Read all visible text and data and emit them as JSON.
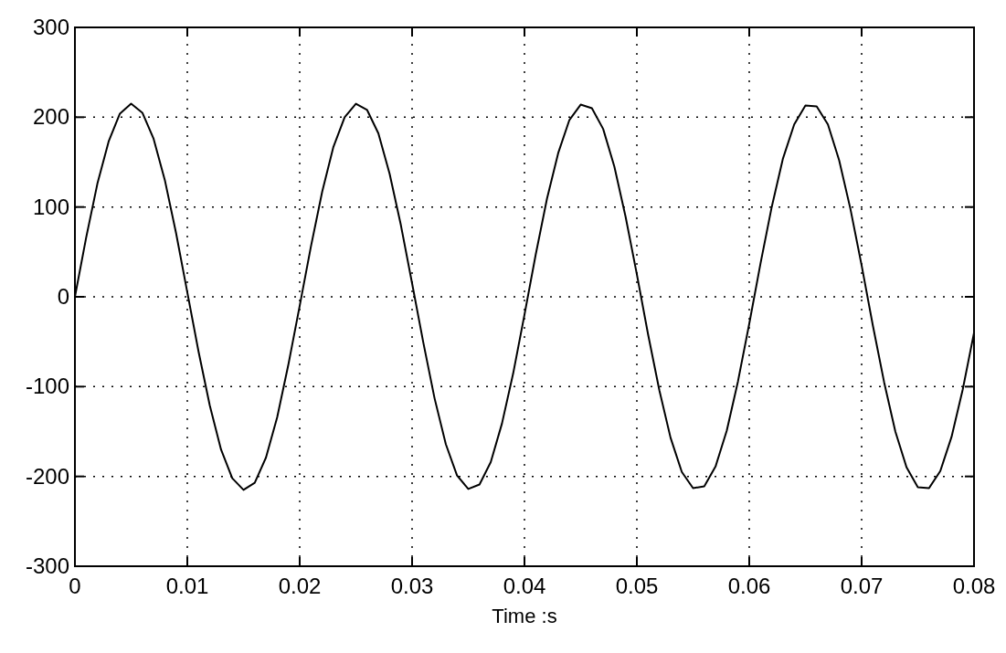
{
  "chart_data": {
    "type": "line",
    "xlabel": "Time :s",
    "x": [
      0,
      0.001,
      0.002,
      0.003,
      0.004,
      0.005,
      0.006,
      0.007,
      0.008,
      0.009,
      0.01,
      0.011,
      0.012,
      0.013,
      0.014,
      0.015,
      0.016,
      0.017,
      0.018,
      0.019,
      0.02,
      0.021,
      0.022,
      0.023,
      0.024,
      0.025,
      0.026,
      0.027,
      0.028,
      0.029,
      0.03,
      0.031,
      0.032,
      0.033,
      0.034,
      0.035,
      0.036,
      0.037,
      0.038,
      0.039,
      0.04,
      0.041,
      0.042,
      0.043,
      0.044,
      0.045,
      0.046,
      0.047,
      0.048,
      0.049,
      0.05,
      0.051,
      0.052,
      0.053,
      0.054,
      0.055,
      0.056,
      0.057,
      0.058,
      0.059,
      0.06,
      0.061,
      0.062,
      0.063,
      0.064,
      0.065,
      0.066,
      0.067,
      0.068,
      0.069,
      0.07,
      0.071,
      0.072,
      0.073,
      0.074,
      0.075,
      0.076,
      0.077,
      0.078,
      0.079,
      0.08
    ],
    "series": [
      {
        "color": "#000000",
        "values": [
          0,
          66,
          126,
          173,
          204,
          215,
          205,
          176,
          130,
          71,
          5,
          -61,
          -121,
          -170,
          -202,
          -215,
          -207,
          -179,
          -134,
          -75,
          -10,
          56,
          117,
          167,
          200,
          215,
          208,
          182,
          137,
          80,
          15,
          -51,
          -113,
          -164,
          -199,
          -214,
          -209,
          -184,
          -141,
          -85,
          -20,
          47,
          109,
          160,
          197,
          214,
          210,
          187,
          145,
          89,
          25,
          -42,
          -104,
          -157,
          -195,
          -213,
          -211,
          -189,
          -149,
          -94,
          -30,
          37,
          100,
          154,
          192,
          213,
          212,
          192,
          152,
          98,
          35,
          -32,
          -95,
          -150,
          -190,
          -212,
          -213,
          -194,
          -156,
          -103,
          -40
        ]
      }
    ],
    "xlim": [
      0,
      0.08
    ],
    "xticks": [
      0,
      0.01,
      0.02,
      0.03,
      0.04,
      0.05,
      0.06,
      0.07,
      0.08
    ],
    "ylim": [
      -300,
      300
    ],
    "yticks": [
      -300,
      -200,
      -100,
      0,
      100,
      200,
      300
    ],
    "grid": true,
    "line_style": "solid"
  }
}
